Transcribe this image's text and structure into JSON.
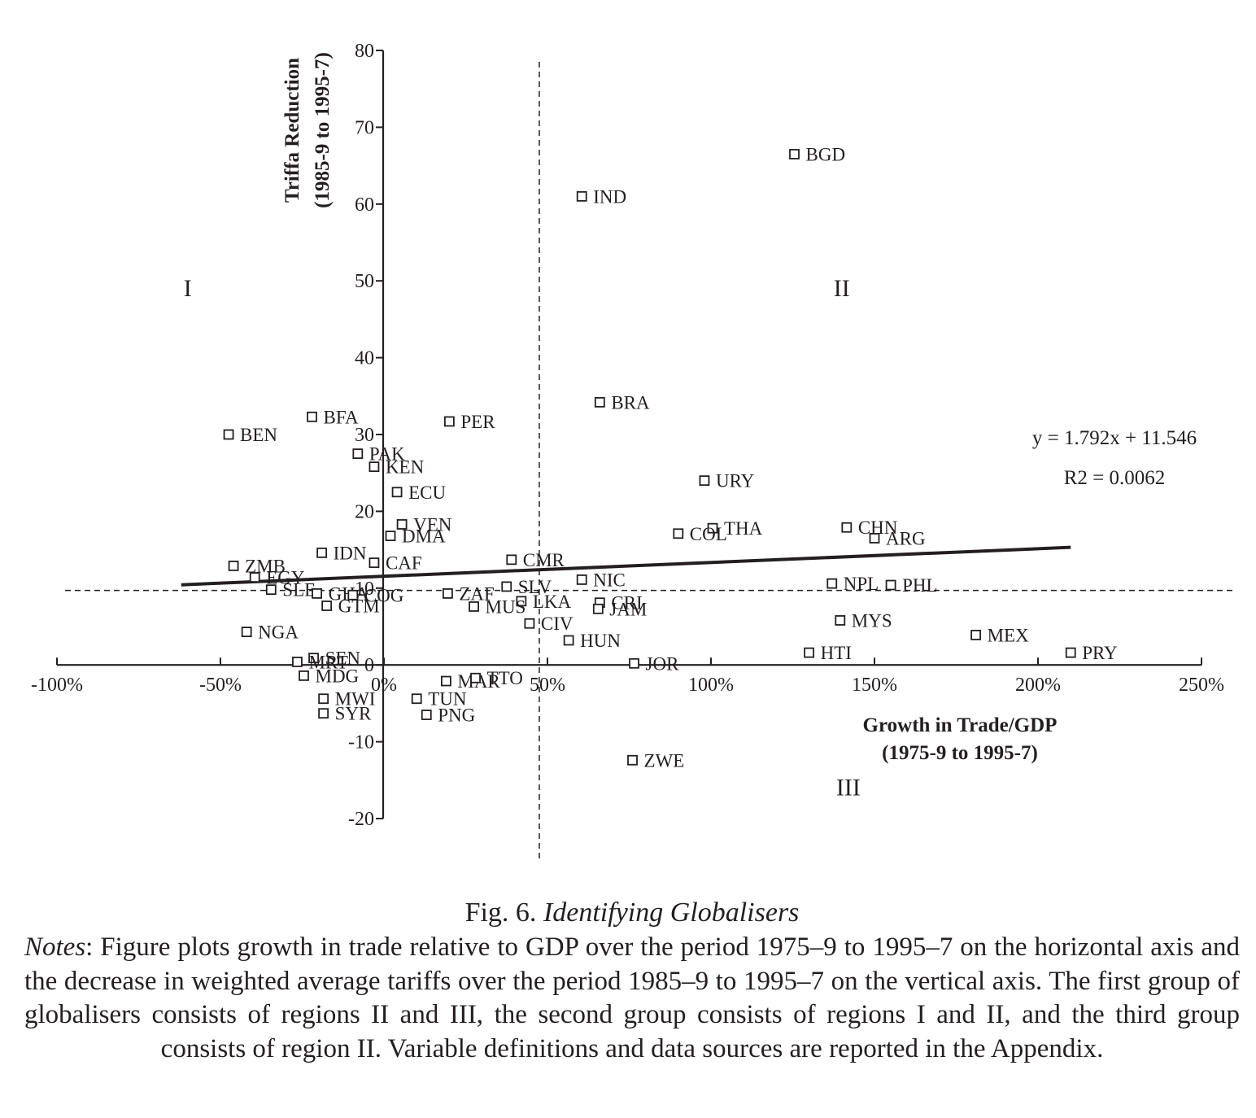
{
  "chart_data": {
    "type": "scatter",
    "ylabel_lines": [
      "Triffa Reduction",
      "(1985-9 to 1995-7)"
    ],
    "xlabel_lines": [
      "Growth in Trade/GDP",
      "(1975-9 to 1995-7)"
    ],
    "xlim": [
      -100,
      250
    ],
    "ylim": [
      -20,
      80
    ],
    "x_ticks": [
      -100,
      -50,
      0,
      50,
      100,
      150,
      200,
      250
    ],
    "x_tick_labels": [
      "-100%",
      "-50%",
      "0%",
      "50%",
      "100%",
      "150%",
      "200%",
      "250%"
    ],
    "y_ticks": [
      -20,
      -10,
      0,
      10,
      20,
      30,
      40,
      50,
      60,
      70,
      80
    ],
    "y_tick_labels": [
      "-20",
      "-10",
      "0",
      "10",
      "20",
      "30",
      "40",
      "50",
      "60",
      "70",
      "80"
    ],
    "grid": false,
    "reference_lines": {
      "x": 47.5,
      "y": 9.7
    },
    "trendline": {
      "equation": "y = 1.792x + 11.546",
      "r2_text": "R2 = 0.0062",
      "slope": 1.792,
      "intercept": 11.546,
      "x_range": [
        -62,
        210
      ]
    },
    "regions": [
      {
        "label": "I",
        "x": -60,
        "y": 48
      },
      {
        "label": "II",
        "x": 140,
        "y": 48
      },
      {
        "label": "III",
        "x": 142,
        "y": -17
      }
    ],
    "points": [
      {
        "label": "BGD",
        "x": 125.5,
        "y": 66.5
      },
      {
        "label": "IND",
        "x": 60.5,
        "y": 61
      },
      {
        "label": "BRA",
        "x": 66,
        "y": 34.2
      },
      {
        "label": "BFA",
        "x": -22,
        "y": 32.3
      },
      {
        "label": "PER",
        "x": 20,
        "y": 31.7
      },
      {
        "label": "BEN",
        "x": -47.5,
        "y": 30
      },
      {
        "label": "PAK",
        "x": -8,
        "y": 27.5
      },
      {
        "label": "KEN",
        "x": -3,
        "y": 25.8
      },
      {
        "label": "ECU",
        "x": 4,
        "y": 22.5
      },
      {
        "label": "URY",
        "x": 98,
        "y": 24
      },
      {
        "label": "VEN",
        "x": 5.5,
        "y": 18.3
      },
      {
        "label": "DMA",
        "x": 2,
        "y": 16.8
      },
      {
        "label": "THA",
        "x": 100.5,
        "y": 17.8
      },
      {
        "label": "COL",
        "x": 90,
        "y": 17.1
      },
      {
        "label": "CHN",
        "x": 141.5,
        "y": 17.9
      },
      {
        "label": "ARG",
        "x": 150,
        "y": 16.5
      },
      {
        "label": "IDN",
        "x": -19,
        "y": 14.6
      },
      {
        "label": "CAF",
        "x": -3,
        "y": 13.3
      },
      {
        "label": "CMR",
        "x": 39,
        "y": 13.7
      },
      {
        "label": "ZMB",
        "x": -46,
        "y": 12.9
      },
      {
        "label": "EGY",
        "x": -39.5,
        "y": 11.4
      },
      {
        "label": "NIC",
        "x": 60.5,
        "y": 11.1
      },
      {
        "label": "NPL",
        "x": 137,
        "y": 10.6
      },
      {
        "label": "PHL",
        "x": 155,
        "y": 10.4
      },
      {
        "label": "SLE",
        "x": -34.5,
        "y": 9.8
      },
      {
        "label": "GHA",
        "x": -20.5,
        "y": 9.3
      },
      {
        "label": "COG",
        "x": -9.5,
        "y": 9.1
      },
      {
        "label": "ZAF",
        "x": 19.5,
        "y": 9.3
      },
      {
        "label": "SLV",
        "x": 37.5,
        "y": 10.2
      },
      {
        "label": "LKA",
        "x": 42,
        "y": 8.3
      },
      {
        "label": "CRI",
        "x": 66,
        "y": 8.1
      },
      {
        "label": "GTM",
        "x": -17.5,
        "y": 7.7
      },
      {
        "label": "MUS",
        "x": 27.5,
        "y": 7.6
      },
      {
        "label": "JAM",
        "x": 65.5,
        "y": 7.3
      },
      {
        "label": "CIV",
        "x": 44.5,
        "y": 5.4
      },
      {
        "label": "MYS",
        "x": 139.5,
        "y": 5.8
      },
      {
        "label": "NGA",
        "x": -42,
        "y": 4.3
      },
      {
        "label": "MEX",
        "x": 181,
        "y": 3.9
      },
      {
        "label": "HUN",
        "x": 56.5,
        "y": 3.2
      },
      {
        "label": "HTI",
        "x": 130,
        "y": 1.6
      },
      {
        "label": "PRY",
        "x": 210,
        "y": 1.6
      },
      {
        "label": "SEN",
        "x": -21.5,
        "y": 0.9
      },
      {
        "label": "MRT",
        "x": -26.5,
        "y": 0.4
      },
      {
        "label": "JOR",
        "x": 76.5,
        "y": 0.2
      },
      {
        "label": "MDG",
        "x": -24.5,
        "y": -1.4
      },
      {
        "label": "MAR",
        "x": 19,
        "y": -2.1
      },
      {
        "label": "TTO",
        "x": 28,
        "y": -1.7
      },
      {
        "label": "MWI",
        "x": -18.5,
        "y": -4.4
      },
      {
        "label": "TUN",
        "x": 10,
        "y": -4.4
      },
      {
        "label": "SYR",
        "x": -18.5,
        "y": -6.3
      },
      {
        "label": "PNG",
        "x": 13,
        "y": -6.5
      },
      {
        "label": "ZWE",
        "x": 76,
        "y": -12.4
      }
    ]
  },
  "figure": {
    "number": "Fig. 6.",
    "title": "Identifying  Globalisers",
    "notes_label": "Notes",
    "notes_text": ": Figure plots growth in trade relative to GDP over the period 1975–9 to 1995–7 on the horizontal axis and the decrease in weighted average tariffs over the period 1985–9 to 1995–7 on the vertical axis. The first group of globalisers consists of regions II and III, the second group consists of regions I and II, and the third group consists of region II. Variable definitions and data sources are reported in the Appendix."
  }
}
